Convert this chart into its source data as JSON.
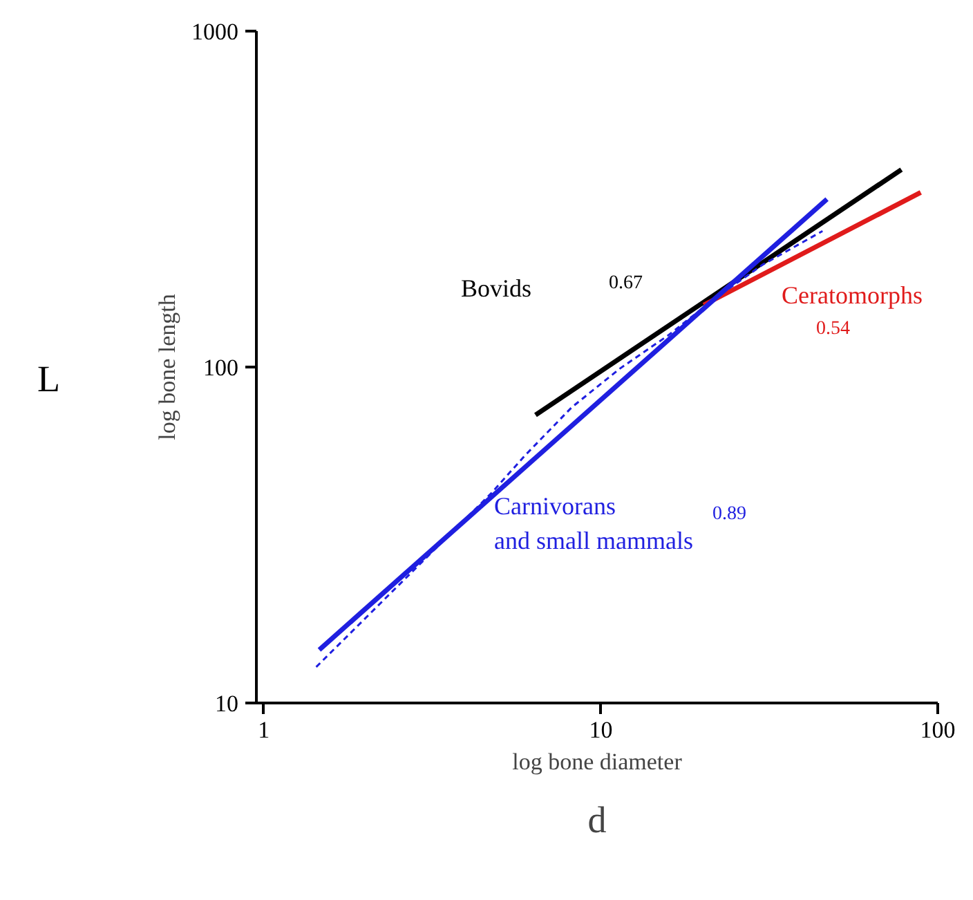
{
  "chart_data": {
    "type": "line",
    "xlabel": "log bone diameter",
    "ylabel": "log bone length",
    "log": "xy",
    "xlim": [
      0.95,
      100
    ],
    "ylim": [
      10,
      1000
    ],
    "xticks": [
      1,
      10,
      100
    ],
    "yticks": [
      10,
      100,
      1000
    ],
    "grid": false,
    "legend": false,
    "series": [
      {
        "name": "Bovids",
        "color": "#000000",
        "x": [
          6.4,
          78
        ],
        "values": [
          72,
          387
        ]
      },
      {
        "name": "Ceratomorphs",
        "color": "#e01b1b",
        "x": [
          20.2,
          89
        ],
        "values": [
          153,
          331
        ]
      },
      {
        "name": "Carnivorans\nand small mammals",
        "color": "#1f1fe0",
        "x": [
          1.46,
          46.9
        ],
        "values": [
          14.4,
          316
        ]
      },
      {
        "color": "#1f1fe0",
        "line_style": "dashed",
        "x": [
          1.43,
          4.73,
          5.94,
          8.2,
          11.4,
          15.8,
          22.0,
          30.3,
          45.5
        ],
        "values": [
          12.8,
          42.1,
          54.4,
          75.9,
          99,
          124,
          161,
          202,
          254
        ]
      }
    ],
    "annotations": [
      "0.67",
      "0.54",
      "0.89",
      "L",
      "d"
    ]
  }
}
